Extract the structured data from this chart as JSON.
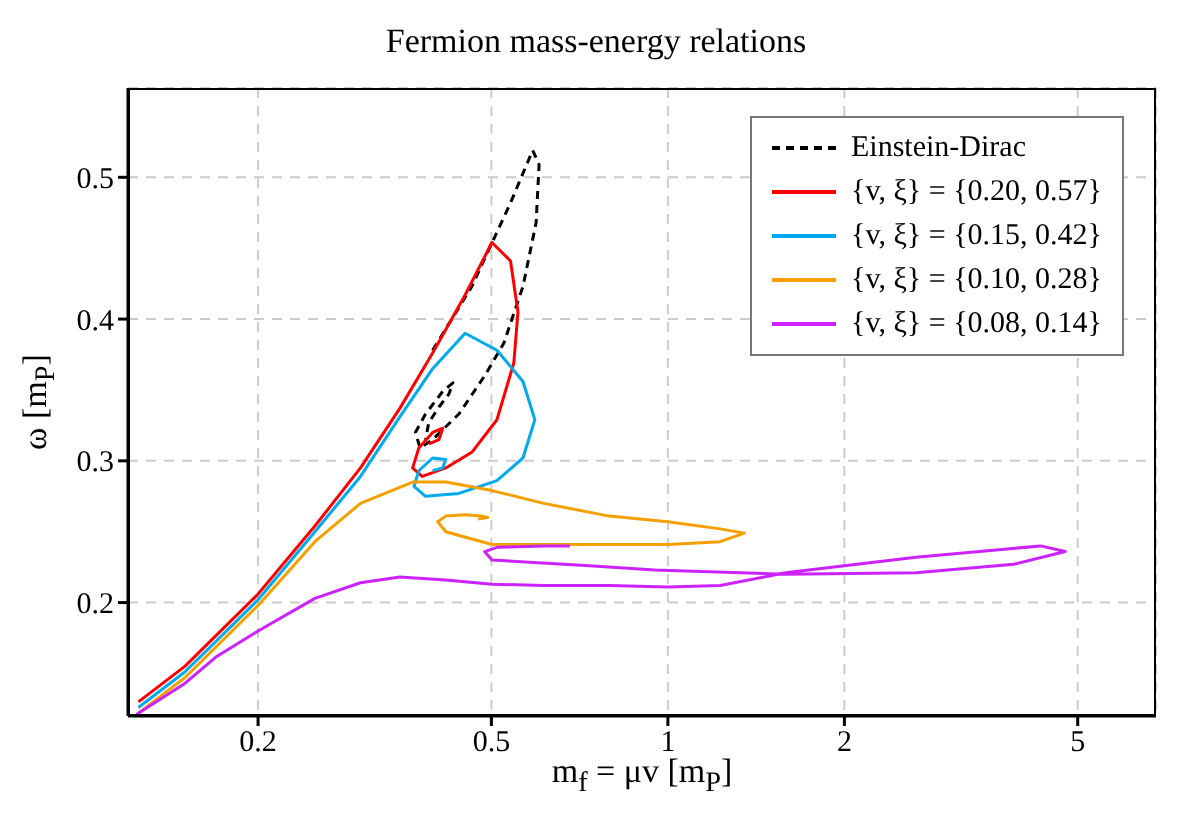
{
  "chart_data": {
    "type": "line",
    "title": "Fermion mass-energy relations",
    "xlabel": "m$_{f}$ = μv [m$_{P}$]",
    "ylabel": "ω [m$_{P}$]",
    "log": "x",
    "xlim": [
      0.12,
      6.8
    ],
    "xticks": [
      0.2,
      0.5,
      1,
      2,
      5
    ],
    "ylim": [
      0.12,
      0.563
    ],
    "yticks": [
      0.2,
      0.3,
      0.4,
      0.5
    ],
    "grid": true,
    "legend": "top right",
    "series": [
      {
        "name": "Einstein-Dirac",
        "color": "#000000",
        "line_style": "dashed",
        "x": [
          0.397,
          0.463,
          0.539,
          0.588,
          0.603,
          0.596,
          0.566,
          0.525,
          0.487,
          0.44,
          0.397,
          0.378,
          0.371,
          0.386,
          0.413,
          0.43,
          0.423,
          0.407,
          0.391,
          0.386
        ],
        "values": [
          0.378,
          0.423,
          0.482,
          0.519,
          0.509,
          0.468,
          0.423,
          0.383,
          0.36,
          0.333,
          0.315,
          0.309,
          0.32,
          0.333,
          0.349,
          0.355,
          0.347,
          0.338,
          0.327,
          0.315
        ]
      },
      {
        "name": "{v, ξ} = {0.20, 0.57}",
        "color": "#ff0000",
        "x": [
          0.125,
          0.15,
          0.2,
          0.25,
          0.299,
          0.349,
          0.397,
          0.451,
          0.501,
          0.539,
          0.555,
          0.546,
          0.511,
          0.463,
          0.418,
          0.381,
          0.367,
          0.376,
          0.397,
          0.413,
          0.407,
          0.391
        ],
        "values": [
          0.13,
          0.155,
          0.206,
          0.254,
          0.295,
          0.337,
          0.376,
          0.417,
          0.454,
          0.441,
          0.405,
          0.369,
          0.329,
          0.306,
          0.295,
          0.289,
          0.295,
          0.309,
          0.32,
          0.323,
          0.315,
          0.312
        ]
      },
      {
        "name": "{v, ξ} = {0.15, 0.42}",
        "color": "#00aaee",
        "x": [
          0.125,
          0.15,
          0.2,
          0.25,
          0.299,
          0.349,
          0.397,
          0.451,
          0.511,
          0.566,
          0.593,
          0.566,
          0.511,
          0.44,
          0.386,
          0.369,
          0.376,
          0.397,
          0.418,
          0.413,
          0.397
        ],
        "values": [
          0.126,
          0.151,
          0.202,
          0.25,
          0.289,
          0.331,
          0.365,
          0.39,
          0.378,
          0.356,
          0.329,
          0.302,
          0.286,
          0.277,
          0.275,
          0.282,
          0.293,
          0.302,
          0.301,
          0.295,
          0.293
        ]
      },
      {
        "name": "{v, ξ} = {0.10, 0.28}",
        "color": "#f5a000",
        "x": [
          0.125,
          0.15,
          0.2,
          0.25,
          0.299,
          0.367,
          0.418,
          0.501,
          0.614,
          0.794,
          1.0,
          1.228,
          1.35,
          1.228,
          1.0,
          0.735,
          0.614,
          0.501,
          0.418,
          0.405,
          0.418,
          0.451,
          0.481,
          0.493,
          0.475
        ],
        "values": [
          0.122,
          0.147,
          0.198,
          0.243,
          0.27,
          0.285,
          0.285,
          0.279,
          0.27,
          0.261,
          0.257,
          0.252,
          0.249,
          0.243,
          0.241,
          0.241,
          0.241,
          0.241,
          0.25,
          0.257,
          0.261,
          0.262,
          0.261,
          0.26,
          0.259
        ]
      },
      {
        "name": "{v, ξ} = {0.08, 0.14}",
        "color": "#cc22ff",
        "x": [
          0.124,
          0.15,
          0.17,
          0.2,
          0.25,
          0.299,
          0.349,
          0.418,
          0.501,
          0.614,
          0.794,
          1.0,
          1.228,
          1.587,
          2.65,
          4.32,
          4.76,
          3.89,
          2.65,
          1.587,
          0.95,
          0.735,
          0.501,
          0.487,
          0.511,
          0.614,
          0.68
        ],
        "values": [
          0.121,
          0.143,
          0.162,
          0.18,
          0.203,
          0.214,
          0.218,
          0.216,
          0.213,
          0.212,
          0.212,
          0.211,
          0.212,
          0.221,
          0.232,
          0.24,
          0.236,
          0.227,
          0.221,
          0.22,
          0.223,
          0.226,
          0.23,
          0.236,
          0.239,
          0.24,
          0.24
        ]
      }
    ]
  }
}
